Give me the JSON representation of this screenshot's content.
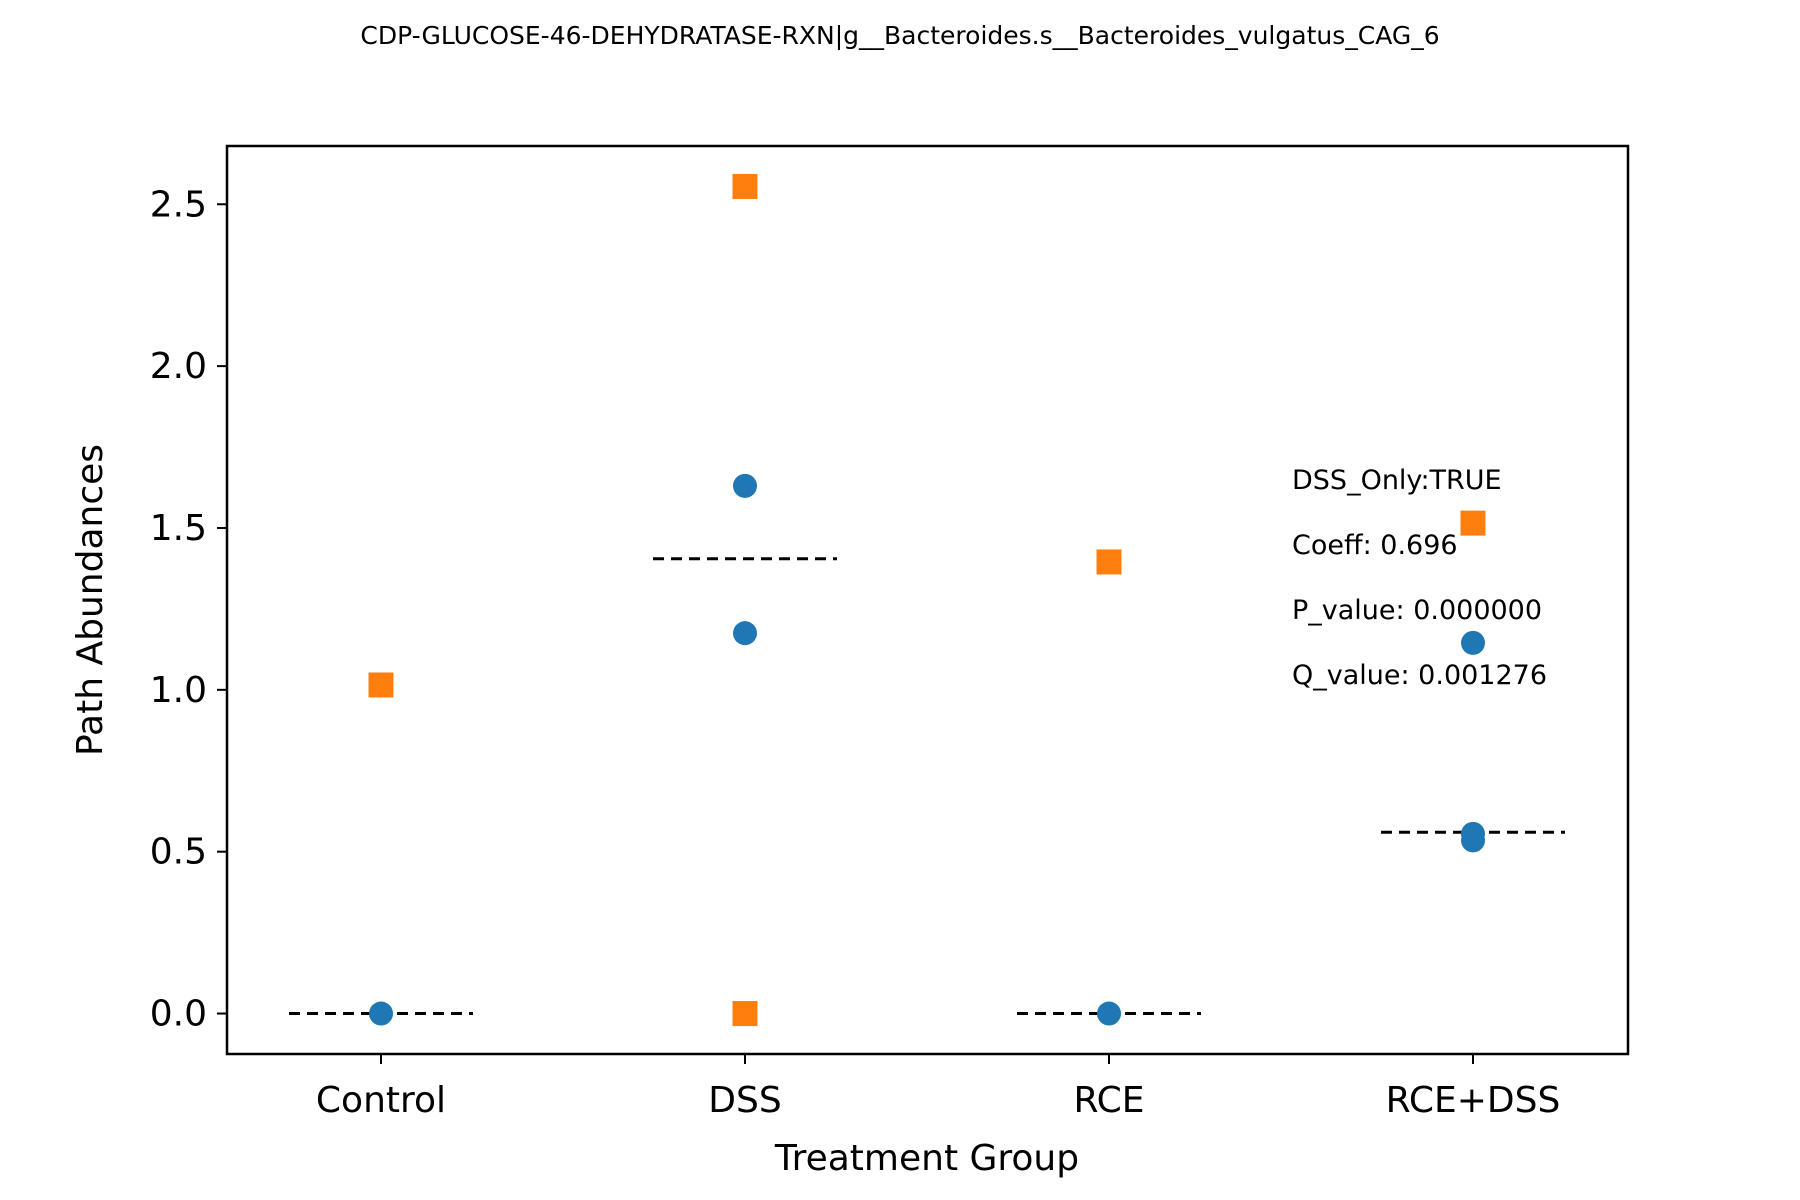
{
  "chart_data": {
    "type": "scatter",
    "title": "CDP-GLUCOSE-46-DEHYDRATASE-RXN|g__Bacteroides.s__Bacteroides_vulgatus_CAG_6",
    "xlabel": "Treatment Group",
    "ylabel": "Path Abundances",
    "categories": [
      "Control",
      "DSS",
      "RCE",
      "RCE+DSS"
    ],
    "ylim": [
      -0.125,
      2.68
    ],
    "yticks": [
      0.0,
      0.5,
      1.0,
      1.5,
      2.0,
      2.5
    ],
    "ytick_labels": [
      "0.0",
      "0.5",
      "1.0",
      "1.5",
      "2.0",
      "2.5"
    ],
    "grid": false,
    "series": [
      {
        "marker": "circle",
        "color": "#1f77b4",
        "points": [
          {
            "category": "Control",
            "y": 0.0
          },
          {
            "category": "DSS",
            "y": 1.63
          },
          {
            "category": "DSS",
            "y": 1.175
          },
          {
            "category": "RCE",
            "y": 0.0
          },
          {
            "category": "RCE+DSS",
            "y": 1.145
          },
          {
            "category": "RCE+DSS",
            "y": 0.555
          },
          {
            "category": "RCE+DSS",
            "y": 0.535
          }
        ]
      },
      {
        "marker": "square",
        "color": "#ff7f0e",
        "points": [
          {
            "category": "Control",
            "y": 1.015
          },
          {
            "category": "DSS",
            "y": 2.555
          },
          {
            "category": "DSS",
            "y": 0.0
          },
          {
            "category": "RCE",
            "y": 1.395
          },
          {
            "category": "RCE+DSS",
            "y": 1.515
          }
        ]
      }
    ],
    "reference_lines": [
      {
        "category": "Control",
        "y": 0.0
      },
      {
        "category": "DSS",
        "y": 1.405
      },
      {
        "category": "RCE",
        "y": 0.0
      },
      {
        "category": "RCE+DSS",
        "y": 0.56
      }
    ],
    "annotations": [
      "DSS_Only:TRUE",
      "Coeff: 0.696",
      "P_value: 0.000000",
      "Q_value: 0.001276"
    ]
  }
}
